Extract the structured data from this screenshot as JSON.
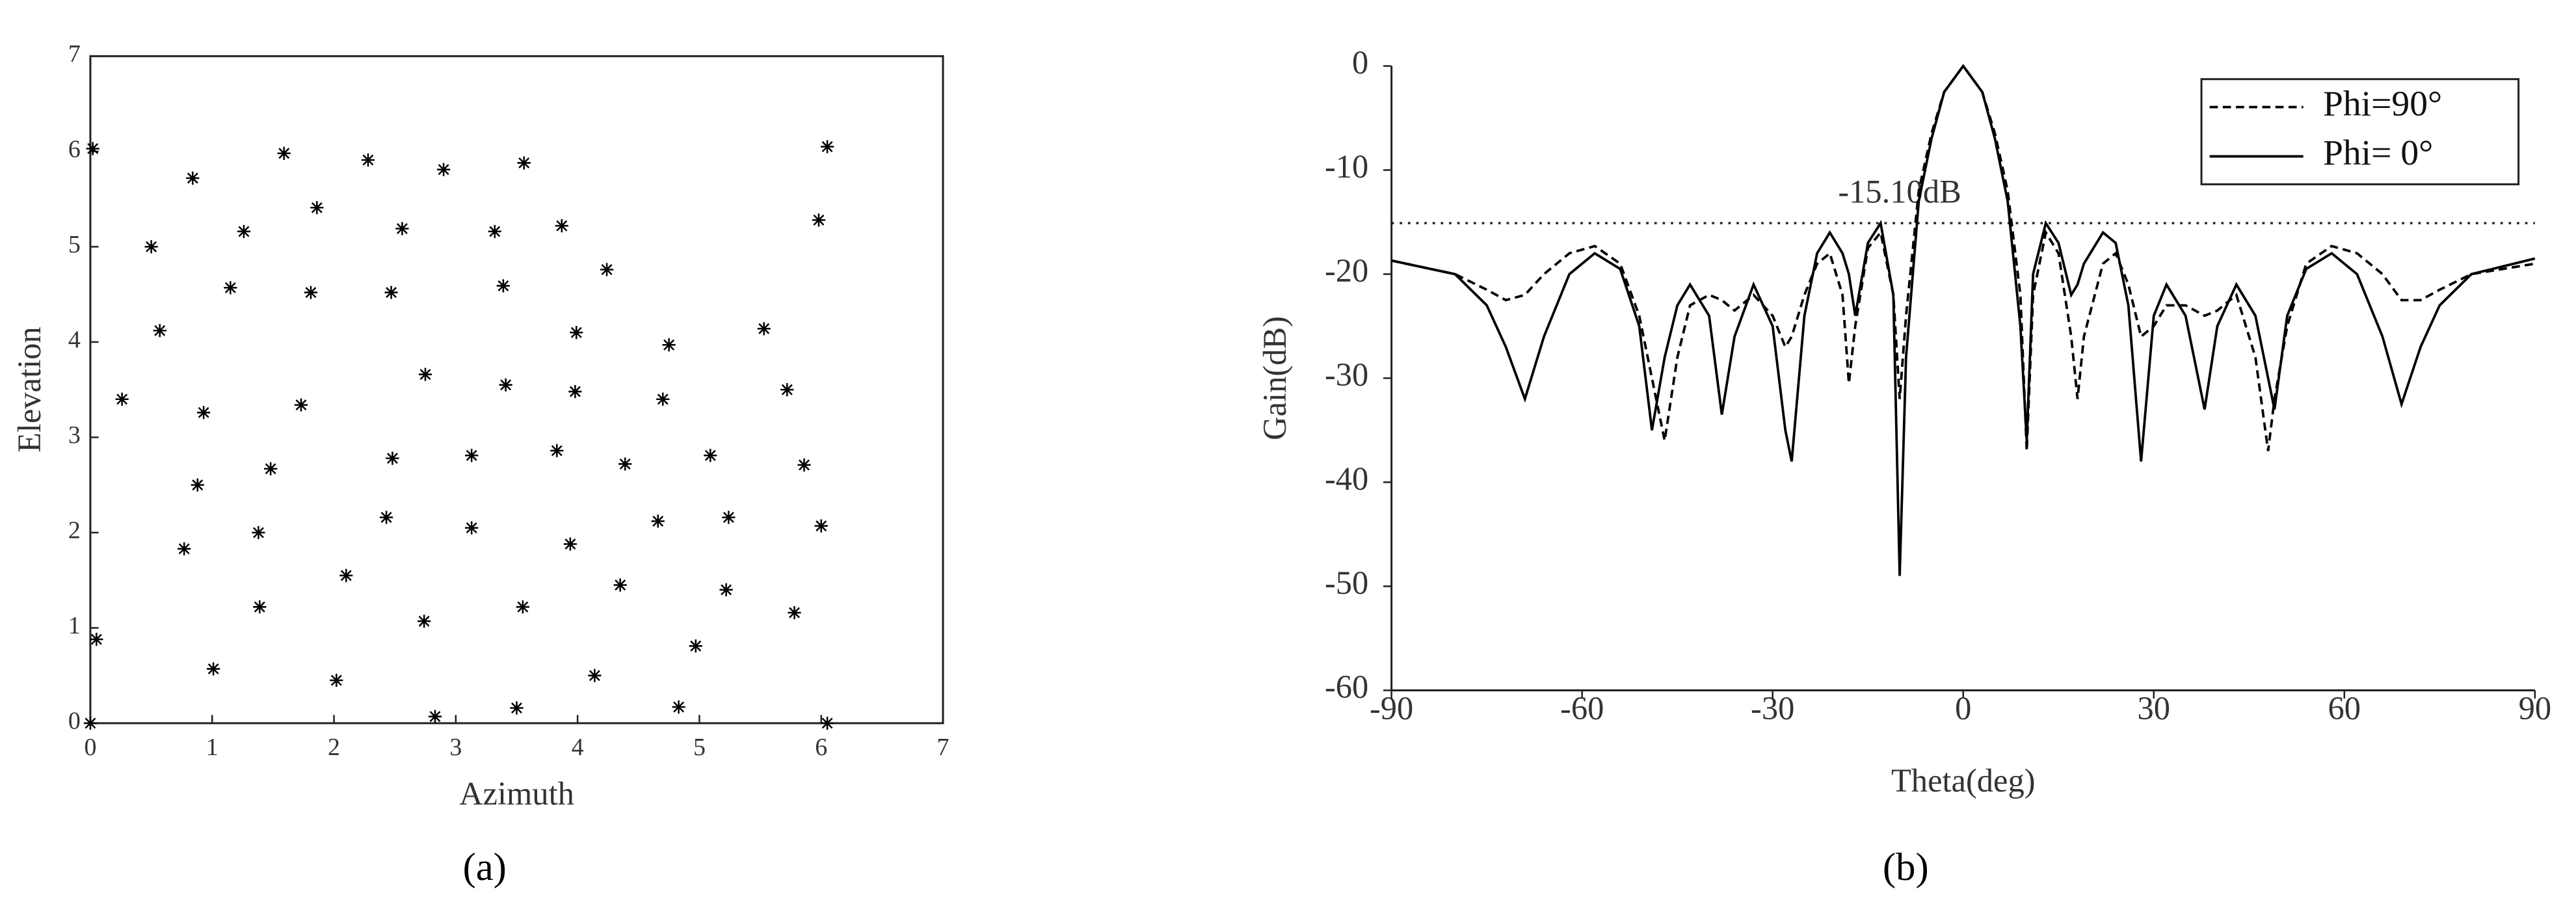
{
  "chart_data": [
    {
      "type": "scatter",
      "caption": "(a)",
      "xlabel": "Azimuth",
      "ylabel": "Elevation",
      "color": "#000000",
      "x": [
        0.02,
        0.84,
        1.59,
        2.28,
        2.9,
        3.56,
        6.05,
        0.5,
        1.26,
        1.86,
        2.56,
        3.32,
        3.87,
        4.24,
        5.98,
        1.15,
        1.81,
        2.47,
        3.39,
        5.53,
        0.57,
        3.99,
        4.75,
        0.26,
        0.93,
        1.73,
        2.75,
        3.41,
        3.98,
        4.7,
        5.72,
        0.88,
        1.48,
        2.48,
        3.13,
        3.83,
        4.39,
        5.09,
        5.86,
        0.77,
        1.38,
        2.43,
        3.13,
        3.94,
        4.66,
        5.24,
        6.0,
        2.1,
        1.39,
        2.74,
        3.55,
        4.35,
        5.22,
        5.78,
        0.05,
        1.01,
        2.02,
        4.14,
        4.97,
        2.83,
        3.5,
        4.83,
        0.0,
        6.05
      ],
      "values": [
        6.03,
        5.72,
        5.98,
        5.91,
        5.81,
        5.88,
        6.05,
        5.0,
        5.16,
        5.41,
        5.19,
        5.16,
        5.22,
        4.76,
        5.28,
        4.57,
        4.52,
        4.52,
        4.59,
        4.14,
        4.12,
        4.1,
        3.97,
        3.4,
        3.26,
        3.34,
        3.66,
        3.55,
        3.48,
        3.4,
        3.5,
        2.5,
        2.67,
        2.78,
        2.81,
        2.86,
        2.72,
        2.81,
        2.71,
        1.83,
        2.0,
        2.16,
        2.05,
        1.88,
        2.12,
        2.16,
        2.07,
        1.55,
        1.22,
        1.07,
        1.22,
        1.45,
        1.4,
        1.16,
        0.88,
        0.57,
        0.45,
        0.5,
        0.81,
        0.07,
        0.16,
        0.17,
        0.0,
        0.0
      ],
      "xlim": [
        0,
        7
      ],
      "xticks": [
        0,
        1,
        2,
        3,
        4,
        5,
        6,
        7
      ],
      "ylim": [
        0,
        7
      ],
      "yticks": [
        0,
        1,
        2,
        3,
        4,
        5,
        6,
        7
      ],
      "box": true
    },
    {
      "type": "line",
      "caption": "(b)",
      "xlabel": "Theta(deg)",
      "ylabel": "Gain(dB)",
      "x": [
        -90,
        -80,
        -75,
        -72,
        -69,
        -66,
        -62,
        -58,
        -54,
        -51,
        -49,
        -47,
        -45,
        -43,
        -40,
        -38,
        -36,
        -33,
        -30,
        -28,
        -27,
        -25,
        -23,
        -21,
        -19,
        -18,
        -17,
        -15,
        -13,
        -11,
        -10,
        -9,
        -7,
        -5,
        -3,
        0,
        3,
        5,
        7,
        9,
        10,
        11,
        13,
        15,
        17,
        18,
        19,
        22,
        24,
        26,
        28,
        30,
        32,
        35,
        38,
        40,
        43,
        46,
        48,
        49,
        51,
        54,
        58,
        62,
        66,
        69,
        72,
        75,
        80,
        90
      ],
      "series": [
        {
          "name": "Phi=90°",
          "color": "#000000",
          "line_style": "dashed",
          "values": [
            -18.7,
            -20,
            -21.5,
            -22.5,
            -22,
            -20,
            -18,
            -17.3,
            -19,
            -24,
            -30,
            -36,
            -28,
            -23,
            -22,
            -22.5,
            -23.5,
            -22,
            -24,
            -27,
            -26,
            -22,
            -19,
            -18,
            -22,
            -30.5,
            -25,
            -17.5,
            -16,
            -22,
            -32,
            -24,
            -12,
            -6.5,
            -2.5,
            0,
            -2.5,
            -6.5,
            -12,
            -22,
            -37,
            -22,
            -16,
            -18,
            -26,
            -32,
            -26,
            -19,
            -18,
            -21,
            -26,
            -25,
            -23,
            -23,
            -24,
            -23.5,
            -22,
            -28,
            -37,
            -32,
            -25,
            -19,
            -17.3,
            -18,
            -20,
            -22.5,
            -22.5,
            -21.5,
            -20,
            -19
          ]
        },
        {
          "name": "Phi= 0°",
          "color": "#000000",
          "line_style": "solid",
          "values": [
            -18.7,
            -20,
            -23,
            -27,
            -32,
            -26,
            -20,
            -18,
            -19.5,
            -25,
            -35,
            -28,
            -23,
            -21,
            -24,
            -33.5,
            -26,
            -21,
            -25,
            -35,
            -38,
            -24,
            -18,
            -16,
            -18,
            -20,
            -24,
            -17,
            -15.1,
            -22,
            -49,
            -28,
            -13,
            -7,
            -2.5,
            0,
            -2.5,
            -7,
            -13,
            -25,
            -36,
            -20,
            -15.1,
            -17,
            -22,
            -21,
            -19,
            -16,
            -17,
            -23,
            -38,
            -24,
            -21,
            -24,
            -33,
            -25,
            -21,
            -24,
            -30,
            -33,
            -24,
            -19.5,
            -18,
            -20,
            -26,
            -32.5,
            -27,
            -23,
            -20,
            -18.5
          ]
        }
      ],
      "xlim": [
        -90,
        90
      ],
      "xticks": [
        -90,
        -60,
        -30,
        0,
        30,
        60,
        90
      ],
      "ylim": [
        -60,
        0
      ],
      "yticks": [
        0,
        -10,
        -20,
        -30,
        -40,
        -50,
        -60
      ],
      "reference_line": {
        "value": -15.1,
        "label": "-15.10dB"
      },
      "legend": "upper right",
      "box": false
    }
  ]
}
